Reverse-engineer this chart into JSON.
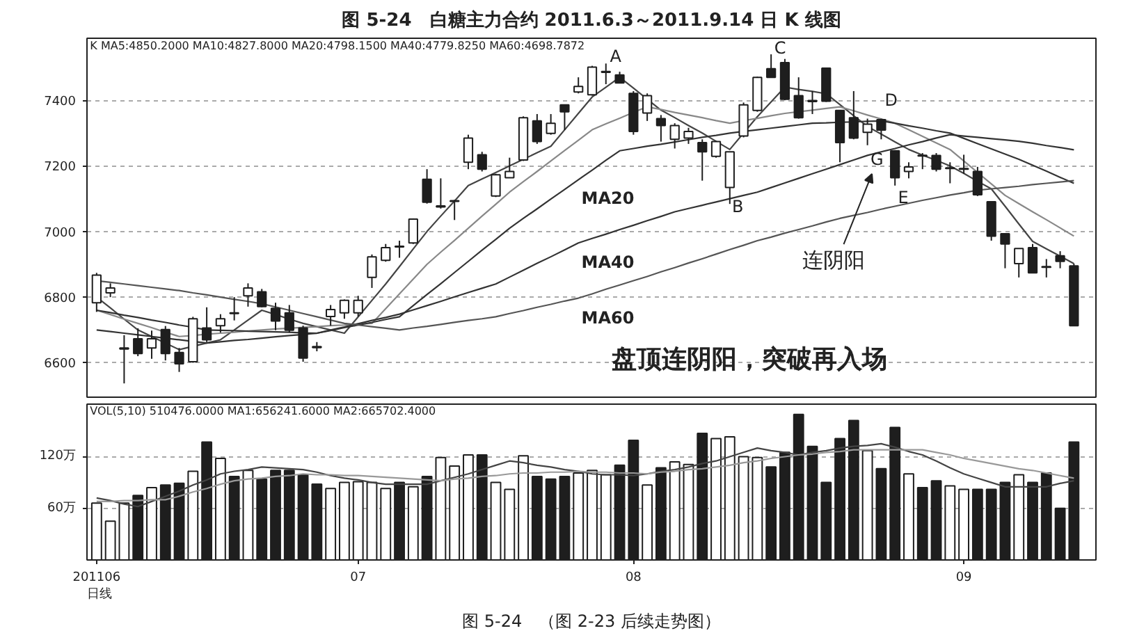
{
  "chart_data": [
    {
      "type": "candlestick",
      "title": "图 5-24　白糖主力合约 2011.6.3～2011.9.14 日 K 线图",
      "categories": [
        "201106",
        null,
        null,
        null,
        null,
        null,
        null,
        null,
        null,
        null,
        null,
        null,
        null,
        null,
        null,
        null,
        null,
        null,
        null,
        "07",
        null,
        null,
        null,
        null,
        null,
        null,
        null,
        null,
        null,
        null,
        null,
        null,
        null,
        null,
        null,
        null,
        null,
        null,
        null,
        "08",
        null,
        null,
        null,
        null,
        null,
        null,
        null,
        null,
        null,
        null,
        null,
        null,
        null,
        null,
        null,
        null,
        null,
        null,
        null,
        null,
        null,
        null,
        null,
        "09",
        null,
        null,
        null,
        null,
        null,
        null,
        null,
        null
      ],
      "ohlc": [
        [
          6783,
          6874,
          6755,
          6867
        ],
        [
          6813,
          6842,
          6800,
          6828
        ],
        [
          6642,
          6684,
          6537,
          6645
        ],
        [
          6673,
          6705,
          6620,
          6628
        ],
        [
          6645,
          6698,
          6612,
          6673
        ],
        [
          6701,
          6712,
          6607,
          6628
        ],
        [
          6631,
          6645,
          6572,
          6597
        ],
        [
          6603,
          6740,
          6600,
          6734
        ],
        [
          6706,
          6769,
          6663,
          6670
        ],
        [
          6713,
          6748,
          6692,
          6734
        ],
        [
          6752,
          6800,
          6729,
          6750
        ],
        [
          6804,
          6842,
          6771,
          6828
        ],
        [
          6816,
          6825,
          6769,
          6771
        ],
        [
          6766,
          6783,
          6699,
          6727
        ],
        [
          6752,
          6776,
          6692,
          6699
        ],
        [
          6706,
          6713,
          6603,
          6614
        ],
        [
          6649,
          6663,
          6635,
          6646
        ],
        [
          6741,
          6776,
          6713,
          6762
        ],
        [
          6752,
          6793,
          6734,
          6790
        ],
        [
          6752,
          6804,
          6741,
          6790
        ],
        [
          6860,
          6930,
          6828,
          6923
        ],
        [
          6912,
          6962,
          6908,
          6951
        ],
        [
          6955,
          6972,
          6920,
          6953
        ],
        [
          6965,
          7040,
          6962,
          7038
        ],
        [
          7159,
          7190,
          7085,
          7089
        ],
        [
          7075,
          7162,
          7070,
          7078
        ],
        [
          7092,
          7096,
          7035,
          7094
        ],
        [
          7211,
          7295,
          7190,
          7285
        ],
        [
          7234,
          7243,
          7183,
          7190
        ],
        [
          7108,
          7176,
          7105,
          7173
        ],
        [
          7164,
          7225,
          7164,
          7183
        ],
        [
          7218,
          7351,
          7215,
          7347
        ],
        [
          7337,
          7358,
          7267,
          7274
        ],
        [
          7299,
          7358,
          7295,
          7330
        ],
        [
          7386,
          7386,
          7309,
          7365
        ],
        [
          7425,
          7470,
          7421,
          7442
        ],
        [
          7417,
          7505,
          7414,
          7501
        ],
        [
          7485,
          7512,
          7449,
          7488
        ],
        [
          7477,
          7487,
          7453,
          7453
        ],
        [
          7421,
          7428,
          7295,
          7305
        ],
        [
          7361,
          7421,
          7337,
          7414
        ],
        [
          7344,
          7355,
          7274,
          7323
        ],
        [
          7281,
          7330,
          7253,
          7323
        ],
        [
          7285,
          7316,
          7267,
          7305
        ],
        [
          7271,
          7281,
          7155,
          7243
        ],
        [
          7229,
          7276,
          7225,
          7274
        ],
        [
          7134,
          7243,
          7084,
          7243
        ],
        [
          7291,
          7393,
          7287,
          7386
        ],
        [
          7369,
          7472,
          7365,
          7470
        ],
        [
          7496,
          7540,
          7470,
          7470
        ],
        [
          7515,
          7526,
          7400,
          7403
        ],
        [
          7414,
          7470,
          7344,
          7347
        ],
        [
          7399,
          7428,
          7358,
          7396
        ],
        [
          7498,
          7498,
          7395,
          7397
        ],
        [
          7369,
          7369,
          7211,
          7271
        ],
        [
          7347,
          7428,
          7281,
          7285
        ],
        [
          7302,
          7344,
          7263,
          7327
        ],
        [
          7341,
          7344,
          7281,
          7309
        ],
        [
          7246,
          7248,
          7140,
          7164
        ],
        [
          7183,
          7211,
          7162,
          7197
        ],
        [
          7230,
          7239,
          7190,
          7232
        ],
        [
          7232,
          7239,
          7183,
          7190
        ],
        [
          7194,
          7211,
          7147,
          7192
        ],
        [
          7190,
          7234,
          7176,
          7192
        ],
        [
          7183,
          7197,
          7108,
          7112
        ],
        [
          7091,
          7091,
          6972,
          6986
        ],
        [
          6993,
          6993,
          6888,
          6962
        ],
        [
          6902,
          6948,
          6860,
          6948
        ],
        [
          6951,
          6962,
          6874,
          6874
        ],
        [
          6893,
          6916,
          6860,
          6891
        ],
        [
          6926,
          6940,
          6888,
          6909
        ],
        [
          6895,
          6902,
          6713,
          6713
        ]
      ],
      "color": "#1e1e1e",
      "colors": [
        "#ffffff",
        "#ffffff",
        "#ffffff",
        "#1e1e1e",
        "#ffffff",
        "#1e1e1e",
        "#1e1e1e",
        "#ffffff",
        "#1e1e1e",
        "#ffffff",
        "#1e1e1e",
        "#ffffff",
        "#1e1e1e",
        "#1e1e1e",
        "#1e1e1e",
        "#1e1e1e",
        "#1e1e1e",
        "#ffffff",
        "#ffffff",
        "#ffffff",
        "#ffffff",
        "#ffffff",
        "#1e1e1e",
        "#ffffff",
        "#1e1e1e",
        "#ffffff",
        "#ffffff",
        "#ffffff",
        "#1e1e1e",
        "#ffffff",
        "#ffffff",
        "#ffffff",
        "#1e1e1e",
        "#ffffff",
        "#1e1e1e",
        "#ffffff",
        "#ffffff",
        "#ffffff",
        "#1e1e1e",
        "#1e1e1e",
        "#ffffff",
        "#1e1e1e",
        "#ffffff",
        "#ffffff",
        "#1e1e1e",
        "#ffffff",
        "#ffffff",
        "#ffffff",
        "#ffffff",
        "#1e1e1e",
        "#1e1e1e",
        "#1e1e1e",
        "#1e1e1e",
        "#1e1e1e",
        "#1e1e1e",
        "#1e1e1e",
        "#ffffff",
        "#1e1e1e",
        "#1e1e1e",
        "#ffffff",
        "#ffffff",
        "#1e1e1e",
        "#1e1e1e",
        "#ffffff",
        "#1e1e1e",
        "#1e1e1e",
        "#1e1e1e",
        "#ffffff",
        "#1e1e1e",
        "#1e1e1e",
        "#1e1e1e",
        "#1e1e1e"
      ],
      "series": [
        {
          "type": "line",
          "color": "#444444",
          "values": [
            6800,
            6767,
            6733,
            6700,
            6680,
            6660,
            6640,
            6650,
            6660,
            6670,
            6700,
            6730,
            6760,
            6747,
            6733,
            6720,
            6710,
            6700,
            6690,
            6740,
            6790,
            6840,
            6893,
            6947,
            7000,
            7047,
            7093,
            7140,
            7160,
            7180,
            7200,
            7220,
            7240,
            7260,
            7310,
            7360,
            7410,
            7440,
            7470,
            7437,
            7403,
            7370,
            7347,
            7323,
            7300,
            7275,
            7250,
            7300,
            7350,
            7395,
            7440,
            7433,
            7427,
            7420,
            7387,
            7353,
            7320,
            7297,
            7273,
            7250,
            7233,
            7217,
            7200,
            7177,
            7153,
            7130,
            7077,
            7023,
            6970,
            6947,
            6925,
            6902
          ]
        },
        {
          "type": "line",
          "color": "#888888",
          "values": [
            6760,
            6747,
            6733,
            6720,
            6707,
            6693,
            6680,
            6683,
            6687,
            6690,
            6693,
            6697,
            6700,
            6703,
            6705,
            6708,
            6710,
            6713,
            6715,
            6718,
            6720,
            6765,
            6810,
            6855,
            6900,
            6937,
            6973,
            7010,
            7047,
            7083,
            7120,
            7152,
            7183,
            7215,
            7247,
            7278,
            7310,
            7328,
            7345,
            7363,
            7380,
            7372,
            7363,
            7355,
            7347,
            7338,
            7330,
            7338,
            7345,
            7353,
            7360,
            7365,
            7370,
            7375,
            7380,
            7368,
            7355,
            7343,
            7330,
            7310,
            7290,
            7270,
            7250,
            7215,
            7180,
            7145,
            7110,
            7085,
            7060,
            7036,
            7011,
            6986
          ]
        },
        {
          "type": "line",
          "name": "MA20",
          "color": "#333333",
          "values": [
            6700,
            6695,
            6690,
            6685,
            6680,
            6675,
            6670,
            6665,
            6660,
            6664,
            6668,
            6671,
            6675,
            6679,
            6683,
            6686,
            6690,
            6698,
            6707,
            6715,
            6723,
            6732,
            6740,
            6774,
            6808,
            6841,
            6875,
            6909,
            6943,
            6976,
            7010,
            7040,
            7069,
            7099,
            7128,
            7158,
            7187,
            7217,
            7246,
            7253,
            7260,
            7266,
            7273,
            7280,
            7287,
            7293,
            7300,
            7305,
            7310,
            7315,
            7320,
            7325,
            7330,
            7331,
            7333,
            7334,
            7336,
            7337,
            7330,
            7322,
            7315,
            7307,
            7300,
            7284,
            7268,
            7252,
            7236,
            7220,
            7202,
            7184,
            7165,
            7147
          ]
        },
        {
          "type": "line",
          "name": "MA40",
          "color": "#333333",
          "values": [
            6760,
            6753,
            6745,
            6738,
            6730,
            6723,
            6715,
            6708,
            6700,
            6699,
            6698,
            6696,
            6695,
            6694,
            6693,
            6691,
            6690,
            6700,
            6709,
            6719,
            6729,
            6738,
            6748,
            6761,
            6774,
            6787,
            6801,
            6814,
            6827,
            6840,
            6861,
            6882,
            6903,
            6923,
            6944,
            6965,
            6979,
            6992,
            7006,
            7019,
            7033,
            7046,
            7060,
            7070,
            7080,
            7090,
            7100,
            7110,
            7120,
            7134,
            7148,
            7162,
            7176,
            7190,
            7204,
            7218,
            7232,
            7243,
            7253,
            7264,
            7274,
            7285,
            7295,
            7291,
            7287,
            7283,
            7279,
            7275,
            7269,
            7262,
            7256,
            7249
          ]
        },
        {
          "type": "line",
          "name": "MA60",
          "color": "#555555",
          "values": [
            6850,
            6845,
            6840,
            6835,
            6830,
            6825,
            6820,
            6813,
            6807,
            6800,
            6793,
            6787,
            6780,
            6770,
            6760,
            6750,
            6740,
            6730,
            6720,
            6715,
            6710,
            6705,
            6700,
            6706,
            6711,
            6717,
            6723,
            6729,
            6734,
            6740,
            6750,
            6759,
            6769,
            6778,
            6788,
            6797,
            6810,
            6824,
            6837,
            6850,
            6863,
            6877,
            6890,
            6904,
            6917,
            6931,
            6945,
            6958,
            6972,
            6983,
            6995,
            7006,
            7017,
            7029,
            7040,
            7049,
            7058,
            7068,
            7077,
            7086,
            7095,
            7103,
            7111,
            7118,
            7126,
            7130,
            7134,
            7138,
            7143,
            7147,
            7151,
            7155
          ]
        }
      ],
      "ylim": [
        6495,
        7589
      ],
      "yticks": [
        6600,
        6800,
        7000,
        7200,
        7400
      ],
      "tick_labels": "y",
      "grid": "y",
      "annotations": [
        "K  MA5:4850.2000  MA10:4827.8000  MA20:4798.1500  MA40:4779.8250  MA60:4698.7872",
        "A",
        "B",
        "C",
        "D",
        "E",
        "G",
        "连阴阳",
        "盘顶连阴阳，突破再入场"
      ]
    },
    {
      "type": "bar",
      "categories": [
        "201106",
        null,
        null,
        null,
        null,
        null,
        null,
        null,
        null,
        null,
        null,
        null,
        null,
        null,
        null,
        null,
        null,
        null,
        null,
        "07",
        null,
        null,
        null,
        null,
        null,
        null,
        null,
        null,
        null,
        null,
        null,
        null,
        null,
        null,
        null,
        null,
        null,
        null,
        null,
        "08",
        null,
        null,
        null,
        null,
        null,
        null,
        null,
        null,
        null,
        null,
        null,
        null,
        null,
        null,
        null,
        null,
        null,
        null,
        null,
        null,
        null,
        null,
        null,
        "09",
        null,
        null,
        null,
        null,
        null,
        null,
        null,
        null
      ],
      "series": [
        {
          "type": "bar",
          "color": "#1e1e1e",
          "values": [
            66,
            45,
            66,
            75,
            84,
            87,
            89,
            103,
            137,
            118,
            97,
            104,
            94,
            104,
            104,
            99,
            88,
            83,
            90,
            91,
            90,
            83,
            90,
            85,
            97,
            119,
            109,
            122,
            122,
            90,
            82,
            121,
            97,
            94,
            97,
            101,
            104,
            99,
            110,
            139,
            87,
            107,
            114,
            111,
            147,
            141,
            143,
            120,
            119,
            108,
            125,
            169,
            132,
            90,
            141,
            162,
            127,
            106,
            154,
            100,
            84,
            92,
            86,
            82,
            82,
            82,
            90,
            99,
            90,
            101,
            60,
            137
          ],
          "colors": [
            "#ffffff",
            "#ffffff",
            "#ffffff",
            "#1e1e1e",
            "#ffffff",
            "#1e1e1e",
            "#1e1e1e",
            "#ffffff",
            "#1e1e1e",
            "#ffffff",
            "#1e1e1e",
            "#ffffff",
            "#1e1e1e",
            "#1e1e1e",
            "#1e1e1e",
            "#1e1e1e",
            "#1e1e1e",
            "#ffffff",
            "#ffffff",
            "#ffffff",
            "#ffffff",
            "#ffffff",
            "#1e1e1e",
            "#ffffff",
            "#1e1e1e",
            "#ffffff",
            "#ffffff",
            "#ffffff",
            "#1e1e1e",
            "#ffffff",
            "#ffffff",
            "#ffffff",
            "#1e1e1e",
            "#1e1e1e",
            "#1e1e1e",
            "#ffffff",
            "#ffffff",
            "#ffffff",
            "#1e1e1e",
            "#1e1e1e",
            "#ffffff",
            "#1e1e1e",
            "#ffffff",
            "#ffffff",
            "#1e1e1e",
            "#ffffff",
            "#ffffff",
            "#ffffff",
            "#ffffff",
            "#1e1e1e",
            "#1e1e1e",
            "#1e1e1e",
            "#1e1e1e",
            "#1e1e1e",
            "#1e1e1e",
            "#1e1e1e",
            "#ffffff",
            "#1e1e1e",
            "#1e1e1e",
            "#ffffff",
            "#1e1e1e",
            "#1e1e1e",
            "#ffffff",
            "#ffffff",
            "#1e1e1e",
            "#1e1e1e",
            "#1e1e1e",
            "#ffffff",
            "#1e1e1e",
            "#1e1e1e",
            "#1e1e1e",
            "#1e1e1e"
          ]
        },
        {
          "type": "line",
          "color": "#444444",
          "values": [
            72,
            69,
            65,
            62,
            68,
            74,
            80,
            87,
            93,
            100,
            103,
            105,
            108,
            107,
            106,
            105,
            102,
            98,
            95,
            93,
            90,
            88,
            88,
            88,
            88,
            92,
            96,
            100,
            105,
            110,
            115,
            113,
            110,
            108,
            105,
            103,
            100,
            99,
            99,
            98,
            100,
            103,
            105,
            108,
            112,
            115,
            120,
            125,
            130,
            127,
            125,
            122,
            125,
            127,
            130,
            132,
            133,
            135,
            131,
            126,
            122,
            115,
            107,
            100,
            95,
            90,
            85,
            85,
            85,
            85,
            89,
            92
          ]
        },
        {
          "type": "line",
          "color": "#999999",
          "values": [
            68,
            68,
            69,
            69,
            70,
            70,
            74,
            79,
            83,
            88,
            92,
            94,
            95,
            97,
            98,
            100,
            99,
            99,
            98,
            98,
            97,
            96,
            95,
            94,
            93,
            92,
            94,
            95,
            97,
            98,
            100,
            101,
            101,
            102,
            102,
            103,
            102,
            102,
            101,
            101,
            100,
            102,
            103,
            105,
            106,
            108,
            110,
            113,
            115,
            118,
            120,
            122,
            123,
            125,
            126,
            128,
            128,
            128,
            128,
            128,
            128,
            125,
            122,
            118,
            115,
            112,
            109,
            106,
            104,
            101,
            98,
            95
          ]
        }
      ],
      "ylim": [
        0,
        181
      ],
      "yticks": [
        {
          "value": 60,
          "label": "60万"
        },
        {
          "value": 120,
          "label": "120万"
        }
      ],
      "grid": "y",
      "annotations": [
        "VOL(5,10)  510476.0000  MA1:656241.6000  MA2:665702.4000",
        "日线",
        "图 5-24　（图 2-23 后续走势图）"
      ]
    }
  ]
}
